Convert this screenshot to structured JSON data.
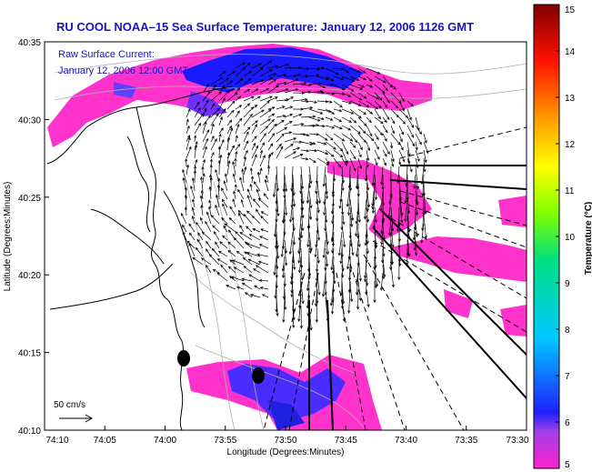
{
  "chart_data": {
    "type": "heatmap",
    "title": "RU COOL  NOAA–15  Sea Surface Temperature:  January 12, 2006 1126 GMT",
    "annotations": [
      "Raw Surface Current:",
      "January 12, 2006 12:00 GMT",
      "50 cm/s"
    ],
    "xlabel": "Longitude (Degrees:Minutes)",
    "ylabel": "Latitude (Degrees:Minutes)",
    "x_tick_labels": [
      "74:10",
      "74:05",
      "74:00",
      "73:55",
      "73:50",
      "73:45",
      "73:40",
      "73:35",
      "73:30"
    ],
    "y_tick_labels": [
      "40:35",
      "40:30",
      "40:25",
      "40:20",
      "40:15",
      "40:10"
    ],
    "colorbar": {
      "label": "Temperature (°C)",
      "range": [
        5,
        15
      ],
      "ticks": [
        "5",
        "6",
        "7",
        "8",
        "9",
        "10",
        "11",
        "12",
        "13",
        "14",
        "15"
      ]
    },
    "colors": {
      "title": "#1515c8",
      "warm_water": "#ff33cc",
      "cold_water": "#1a1aff",
      "coastline": "#000000",
      "bathymetry": "#b0b0b0"
    }
  }
}
